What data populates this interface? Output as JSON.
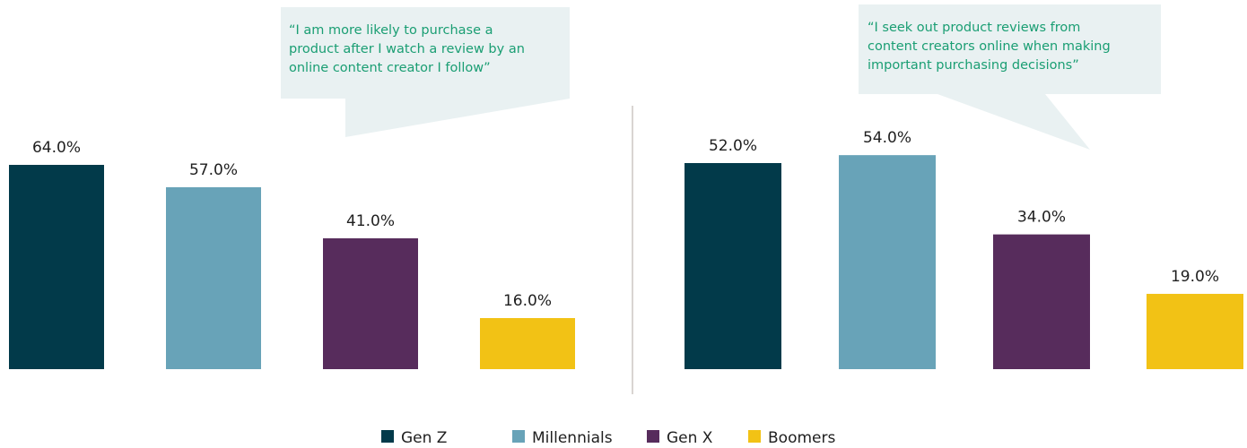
{
  "colors": {
    "gen_z": "#023a4a",
    "millennials": "#68a3b8",
    "gen_x": "#572c5c",
    "boomers": "#f2c215",
    "callout_bg": "#e9f1f2",
    "callout_text": "#1a9e73",
    "divider": "#d9d5d2"
  },
  "legend": {
    "items": [
      {
        "label": "Gen Z",
        "color_key": "gen_z"
      },
      {
        "label": "Millennials",
        "color_key": "millennials"
      },
      {
        "label": "Gen X",
        "color_key": "gen_x"
      },
      {
        "label": "Boomers",
        "color_key": "boomers"
      }
    ]
  },
  "chart_data": [
    {
      "type": "bar",
      "categories": [
        "Gen Z",
        "Millennials",
        "Gen X",
        "Boomers"
      ],
      "values": [
        64.0,
        57.0,
        41.0,
        16.0
      ],
      "value_labels": [
        "64.0%",
        "57.0%",
        "41.0%",
        "16.0%"
      ],
      "callout_lines": [
        "“I am more likely to purchase a",
        "product after I watch a review by an",
        "online content creator I follow”"
      ],
      "ylim": [
        0,
        70
      ]
    },
    {
      "type": "bar",
      "categories": [
        "Gen Z",
        "Millennials",
        "Gen X",
        "Boomers"
      ],
      "values": [
        52.0,
        54.0,
        34.0,
        19.0
      ],
      "value_labels": [
        "52.0%",
        "54.0%",
        "34.0%",
        "19.0%"
      ],
      "callout_lines": [
        "“I seek out product reviews from",
        "content creators online when making",
        "important purchasing decisions”"
      ],
      "ylim": [
        0,
        62
      ]
    }
  ]
}
